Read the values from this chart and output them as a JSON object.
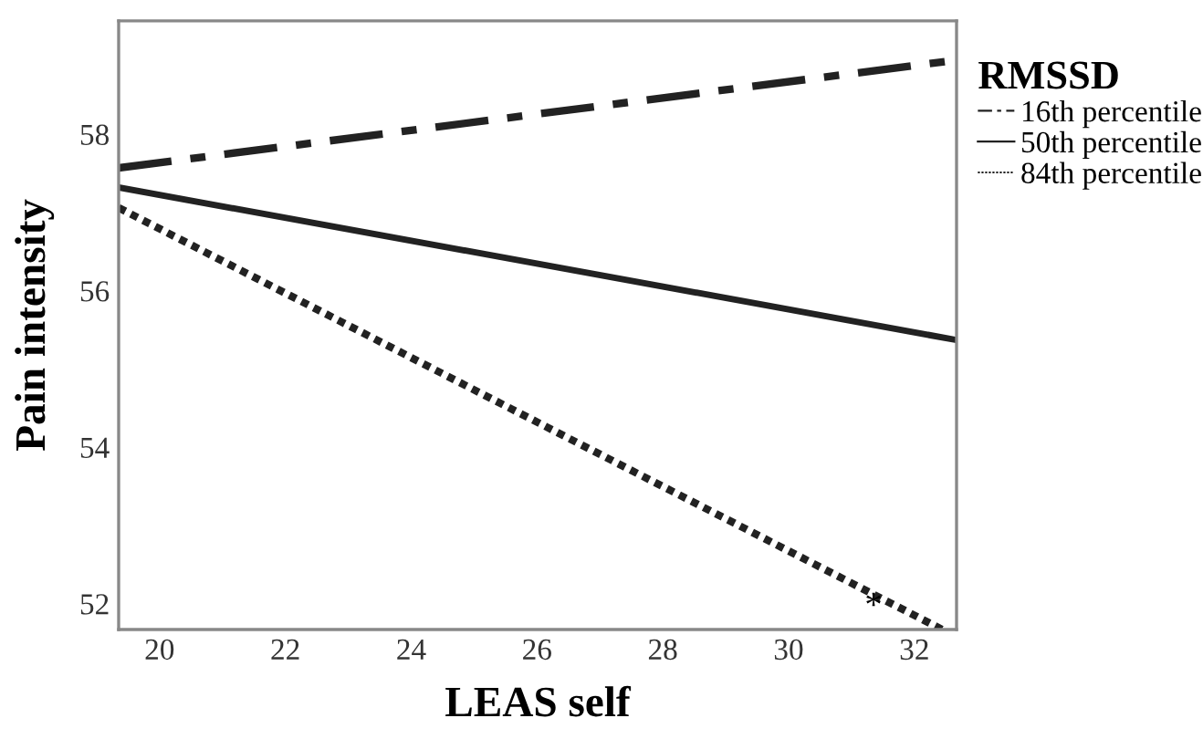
{
  "chart_data": {
    "type": "line",
    "xlabel": "LEAS self",
    "ylabel": "Pain intensity",
    "legend_title": "RMSSD",
    "legend": "right",
    "grid": false,
    "marker": "none",
    "xlim": [
      19.35,
      32.67
    ],
    "ylim": [
      51.67,
      59.45
    ],
    "xticks": [
      20,
      22,
      24,
      26,
      28,
      30,
      32
    ],
    "yticks": [
      52,
      54,
      56,
      58
    ],
    "series": [
      {
        "name": "16th percentile",
        "color": "#222222",
        "line_style": "dashed",
        "x": [
          19.35,
          32.6
        ],
        "values": [
          57.57,
          58.94
        ]
      },
      {
        "name": "50th percentile",
        "color": "#222222",
        "line_style": "solid",
        "x": [
          19.35,
          32.67
        ],
        "values": [
          57.32,
          55.37
        ]
      },
      {
        "name": "84th percentile",
        "color": "#222222",
        "line_style": "dotted",
        "x": [
          19.35,
          32.44
        ],
        "values": [
          57.06,
          51.67
        ]
      }
    ],
    "annotations": [
      {
        "text": "*",
        "x": 31.35,
        "y": 51.95
      }
    ]
  }
}
